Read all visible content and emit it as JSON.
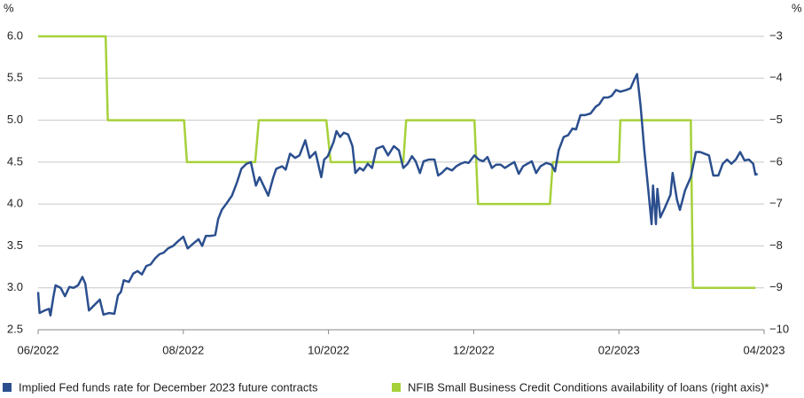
{
  "chart_data": {
    "type": "line",
    "y_label": "%",
    "y2_label": "%",
    "xlim": [
      0,
      10
    ],
    "xticks": [
      {
        "value": 0,
        "label": "06/2022"
      },
      {
        "value": 2,
        "label": "08/2022"
      },
      {
        "value": 4,
        "label": "10/2022"
      },
      {
        "value": 6,
        "label": "12/2022"
      },
      {
        "value": 8,
        "label": "02/2023"
      },
      {
        "value": 10,
        "label": "04/2023"
      }
    ],
    "ylim": [
      2.5,
      6.0
    ],
    "yticks": [
      2.5,
      {
        "value": 3.0,
        "label": "3.0"
      },
      3.5,
      {
        "value": 4.0,
        "label": "4.0"
      },
      4.5,
      {
        "value": 5.0,
        "label": "5.0"
      },
      5.5,
      {
        "value": 6.0,
        "label": "6.0"
      }
    ],
    "y2lim": [
      -10,
      -3
    ],
    "y2ticks": [
      {
        "value": -10,
        "label": "−10"
      },
      {
        "value": -9,
        "label": "−9"
      },
      {
        "value": -8,
        "label": "−8"
      },
      {
        "value": -7,
        "label": "−7"
      },
      {
        "value": -6,
        "label": "−6"
      },
      {
        "value": -5,
        "label": "−5"
      },
      {
        "value": -4,
        "label": "−4"
      },
      {
        "value": -3,
        "label": "−3"
      }
    ],
    "grid": true,
    "series": [
      {
        "name": "Implied Fed funds rate for December 2023 future contracts",
        "color": "#2b4f8e",
        "x": [
          0,
          0.02,
          0.09,
          0.15,
          0.17,
          0.21,
          0.24,
          0.31,
          0.37,
          0.43,
          0.49,
          0.55,
          0.61,
          0.65,
          0.7,
          0.77,
          0.85,
          0.9,
          0.98,
          1.05,
          1.1,
          1.14,
          1.18,
          1.25,
          1.31,
          1.37,
          1.43,
          1.49,
          1.55,
          1.61,
          1.67,
          1.73,
          1.79,
          1.86,
          1.92,
          2.0,
          2.06,
          2.14,
          2.21,
          2.26,
          2.31,
          2.38,
          2.44,
          2.48,
          2.53,
          2.59,
          2.67,
          2.74,
          2.8,
          2.87,
          2.93,
          3.0,
          3.05,
          3.11,
          3.17,
          3.24,
          3.28,
          3.36,
          3.41,
          3.47,
          3.54,
          3.6,
          3.68,
          3.74,
          3.82,
          3.9,
          3.94,
          3.99,
          4.07,
          4.11,
          4.16,
          4.21,
          4.27,
          4.33,
          4.37,
          4.43,
          4.48,
          4.54,
          4.6,
          4.66,
          4.75,
          4.82,
          4.9,
          4.97,
          5.03,
          5.09,
          5.15,
          5.2,
          5.26,
          5.31,
          5.38,
          5.46,
          5.51,
          5.56,
          5.63,
          5.7,
          5.76,
          5.82,
          5.88,
          5.93,
          6.01,
          6.07,
          6.13,
          6.19,
          6.25,
          6.31,
          6.37,
          6.43,
          6.5,
          6.56,
          6.62,
          6.68,
          6.74,
          6.8,
          6.86,
          6.92,
          7.0,
          7.07,
          7.12,
          7.17,
          7.24,
          7.3,
          7.36,
          7.41,
          7.47,
          7.53,
          7.61,
          7.68,
          7.73,
          7.79,
          7.85,
          7.9,
          7.96,
          8.02,
          8.1,
          8.16,
          8.21,
          8.25,
          8.3,
          8.35,
          8.4,
          8.45,
          8.47,
          8.51,
          8.53,
          8.57,
          8.63,
          8.71,
          8.74,
          8.8,
          8.84,
          8.91,
          8.99,
          9.06,
          9.12,
          9.18,
          9.24,
          9.3,
          9.37,
          9.43,
          9.49,
          9.55,
          9.61,
          9.67,
          9.73,
          9.79,
          9.85,
          9.88,
          9.91
        ],
        "values": [
          2.95,
          2.7,
          2.73,
          2.75,
          2.67,
          2.89,
          3.03,
          3.0,
          2.9,
          3.01,
          3.0,
          3.03,
          3.13,
          3.05,
          2.73,
          2.79,
          2.86,
          2.68,
          2.7,
          2.69,
          2.91,
          2.95,
          3.09,
          3.07,
          3.17,
          3.2,
          3.16,
          3.26,
          3.28,
          3.35,
          3.4,
          3.42,
          3.47,
          3.5,
          3.55,
          3.61,
          3.47,
          3.53,
          3.58,
          3.5,
          3.62,
          3.62,
          3.63,
          3.82,
          3.93,
          4.0,
          4.1,
          4.26,
          4.42,
          4.48,
          4.5,
          4.22,
          4.32,
          4.21,
          4.1,
          4.32,
          4.42,
          4.45,
          4.41,
          4.6,
          4.55,
          4.58,
          4.76,
          4.55,
          4.62,
          4.32,
          4.53,
          4.57,
          4.74,
          4.87,
          4.8,
          4.85,
          4.83,
          4.69,
          4.37,
          4.43,
          4.4,
          4.48,
          4.43,
          4.66,
          4.69,
          4.58,
          4.69,
          4.64,
          4.43,
          4.48,
          4.57,
          4.51,
          4.37,
          4.51,
          4.53,
          4.53,
          4.34,
          4.37,
          4.43,
          4.4,
          4.45,
          4.48,
          4.5,
          4.49,
          4.58,
          4.53,
          4.51,
          4.56,
          4.43,
          4.47,
          4.47,
          4.43,
          4.47,
          4.5,
          4.36,
          4.45,
          4.48,
          4.51,
          4.37,
          4.45,
          4.49,
          4.47,
          4.39,
          4.64,
          4.8,
          4.82,
          4.9,
          4.89,
          5.06,
          5.06,
          5.08,
          5.16,
          5.19,
          5.27,
          5.27,
          5.29,
          5.36,
          5.34,
          5.36,
          5.38,
          5.48,
          5.55,
          5.16,
          4.64,
          4.21,
          3.76,
          4.22,
          3.76,
          4.18,
          3.84,
          3.95,
          4.11,
          4.37,
          4.05,
          3.93,
          4.16,
          4.32,
          4.62,
          4.62,
          4.6,
          4.58,
          4.34,
          4.34,
          4.48,
          4.53,
          4.48,
          4.53,
          4.62,
          4.52,
          4.53,
          4.48,
          4.35,
          4.36
        ]
      },
      {
        "name": "NFIB Small Business Credit Conditions availability of loans (right axis)*",
        "color": "#a6d13a",
        "axis": "y2",
        "x": [
          0,
          0.93,
          0.96,
          2.01,
          2.05,
          2.99,
          3.04,
          3.97,
          4.03,
          5.03,
          5.07,
          6.01,
          6.06,
          7.05,
          7.09,
          8.0,
          8.02,
          8.99,
          9.02,
          9.88
        ],
        "values": [
          -3,
          -3,
          -5,
          -5,
          -6,
          -6,
          -5,
          -5,
          -6,
          -6,
          -5,
          -5,
          -7,
          -7,
          -6,
          -6,
          -5,
          -5,
          -9,
          -9
        ]
      }
    ]
  }
}
